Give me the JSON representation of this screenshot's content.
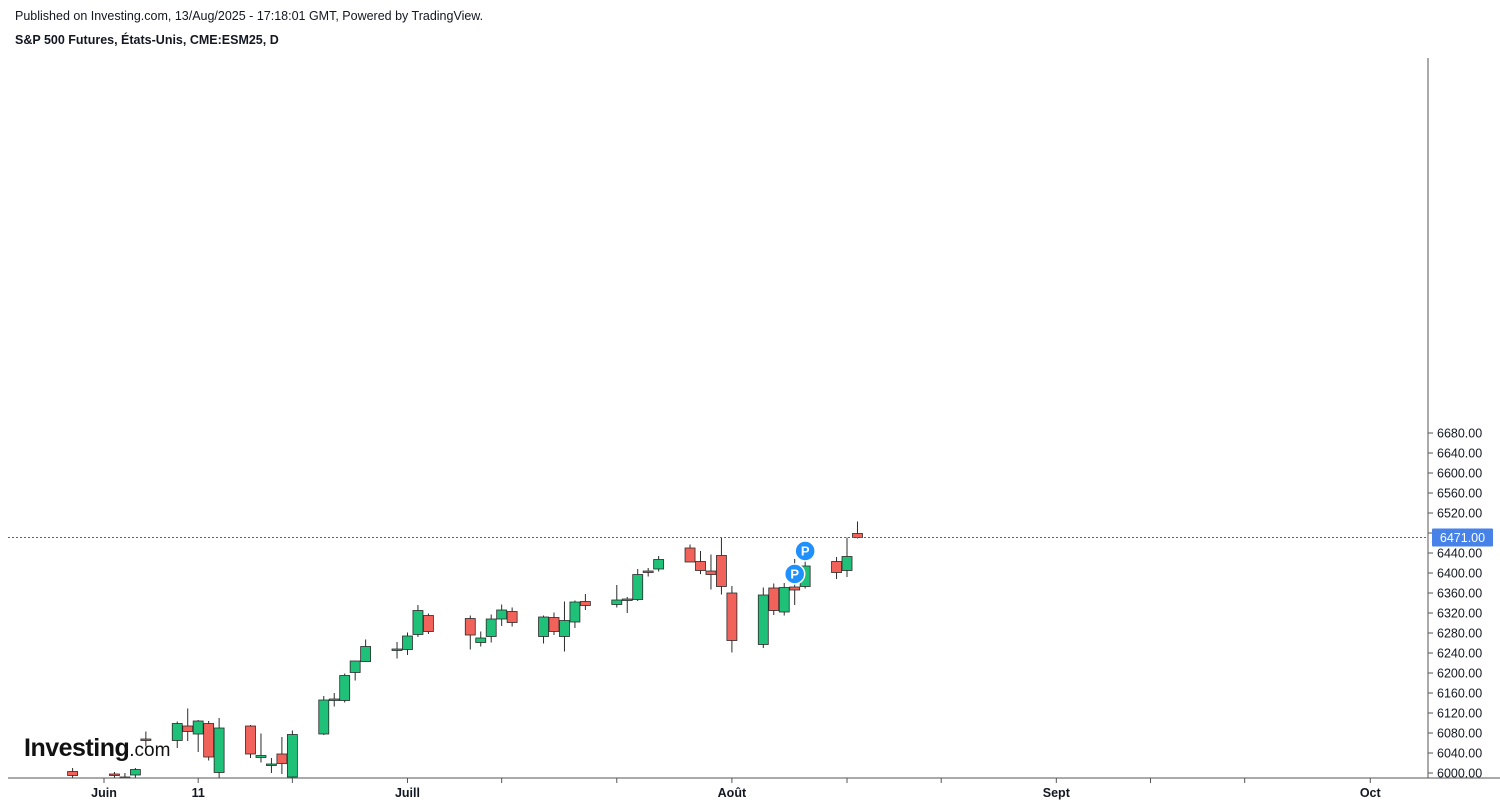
{
  "header": {
    "published": "Published on Investing.com, 13/Aug/2025 - 17:18:01 GMT, Powered by TradingView.",
    "symbol": "S&P 500 Futures, États-Unis, CME:ESM25, D"
  },
  "logo": {
    "main": "Investing",
    "suffix": ".com"
  },
  "colors": {
    "up": "#1ec177",
    "down": "#f0625a",
    "wick": "#2b2b2b",
    "price_line": "#2962ff",
    "marker": "#1e90ff",
    "axis": "#555555"
  },
  "chart_data": {
    "type": "candlestick",
    "title": "S&P 500 Futures, États-Unis, CME:ESM25, D",
    "y_ticks": [
      "6000.00",
      "6040.00",
      "6080.00",
      "6120.00",
      "6160.00",
      "6200.00",
      "6240.00",
      "6280.00",
      "6320.00",
      "6360.00",
      "6400.00",
      "6440.00",
      "6480.00",
      "6520.00",
      "6560.00",
      "6600.00",
      "6640.00",
      "6680.00"
    ],
    "x_ticks": [
      {
        "label": "Juin",
        "date": "2025-06-02"
      },
      {
        "label": "11",
        "date": "2025-06-11"
      },
      {
        "label": "",
        "date": "2025-06-20"
      },
      {
        "label": "Juill",
        "date": "2025-07-01"
      },
      {
        "label": "",
        "date": "2025-07-10"
      },
      {
        "label": "",
        "date": "2025-07-21"
      },
      {
        "label": "Août",
        "date": "2025-08-01"
      },
      {
        "label": "",
        "date": "2025-08-12"
      },
      {
        "label": "",
        "date": "2025-08-21"
      },
      {
        "label": "Sept",
        "date": "2025-09-01"
      },
      {
        "label": "",
        "date": "2025-09-10"
      },
      {
        "label": "",
        "date": "2025-09-19"
      },
      {
        "label": "Oct",
        "date": "2025-10-01"
      }
    ],
    "last_price": "6471.00",
    "last_price_value": 6471,
    "markers": [
      {
        "label": "P",
        "date": "2025-08-08",
        "price": 6444
      },
      {
        "label": "P",
        "date": "2025-08-07",
        "price": 6398
      }
    ],
    "candles": [
      {
        "d": "2025-05-30",
        "o": 6003,
        "h": 6010,
        "l": 5990,
        "c": 5995
      },
      {
        "d": "2025-06-03",
        "o": 5998,
        "h": 6002,
        "l": 5990,
        "c": 5996
      },
      {
        "d": "2025-06-04",
        "o": 5992,
        "h": 6000,
        "l": 5985,
        "c": 5990
      },
      {
        "d": "2025-06-05",
        "o": 5996,
        "h": 6010,
        "l": 5985,
        "c": 6007
      },
      {
        "d": "2025-06-06",
        "o": 6068,
        "h": 6083,
        "l": 6053,
        "c": 6065
      },
      {
        "d": "2025-06-09",
        "o": 6065,
        "h": 6103,
        "l": 6050,
        "c": 6099
      },
      {
        "d": "2025-06-10",
        "o": 6094,
        "h": 6129,
        "l": 6064,
        "c": 6083
      },
      {
        "d": "2025-06-11",
        "o": 6078,
        "h": 6106,
        "l": 6042,
        "c": 6104
      },
      {
        "d": "2025-06-12",
        "o": 6099,
        "h": 6104,
        "l": 6025,
        "c": 6032
      },
      {
        "d": "2025-06-13",
        "o": 6001,
        "h": 6110,
        "l": 5990,
        "c": 6090
      },
      {
        "d": "2025-06-16",
        "o": 6094,
        "h": 6096,
        "l": 6030,
        "c": 6038
      },
      {
        "d": "2025-06-17",
        "o": 6031,
        "h": 6079,
        "l": 6021,
        "c": 6035
      },
      {
        "d": "2025-06-18",
        "o": 6017,
        "h": 6030,
        "l": 6000,
        "c": 6018
      },
      {
        "d": "2025-06-19",
        "o": 6038,
        "h": 6072,
        "l": 5998,
        "c": 6019
      },
      {
        "d": "2025-06-20",
        "o": 5992,
        "h": 6085,
        "l": 5985,
        "c": 6077
      },
      {
        "d": "2025-06-23",
        "o": 6078,
        "h": 6154,
        "l": 6076,
        "c": 6146
      },
      {
        "d": "2025-06-24",
        "o": 6146,
        "h": 6160,
        "l": 6133,
        "c": 6148
      },
      {
        "d": "2025-06-25",
        "o": 6145,
        "h": 6199,
        "l": 6141,
        "c": 6195
      },
      {
        "d": "2025-06-26",
        "o": 6201,
        "h": 6225,
        "l": 6185,
        "c": 6224
      },
      {
        "d": "2025-06-27",
        "o": 6223,
        "h": 6267,
        "l": 6222,
        "c": 6253
      },
      {
        "d": "2025-06-30",
        "o": 6246,
        "h": 6262,
        "l": 6229,
        "c": 6248
      },
      {
        "d": "2025-07-01",
        "o": 6247,
        "h": 6281,
        "l": 6236,
        "c": 6274
      },
      {
        "d": "2025-07-02",
        "o": 6277,
        "h": 6336,
        "l": 6272,
        "c": 6325
      },
      {
        "d": "2025-07-03",
        "o": 6315,
        "h": 6319,
        "l": 6278,
        "c": 6283
      },
      {
        "d": "2025-07-07",
        "o": 6309,
        "h": 6315,
        "l": 6247,
        "c": 6276
      },
      {
        "d": "2025-07-08",
        "o": 6261,
        "h": 6283,
        "l": 6253,
        "c": 6270
      },
      {
        "d": "2025-07-09",
        "o": 6273,
        "h": 6317,
        "l": 6261,
        "c": 6308
      },
      {
        "d": "2025-07-10",
        "o": 6308,
        "h": 6337,
        "l": 6294,
        "c": 6326
      },
      {
        "d": "2025-07-11",
        "o": 6323,
        "h": 6331,
        "l": 6293,
        "c": 6301
      },
      {
        "d": "2025-07-14",
        "o": 6273,
        "h": 6315,
        "l": 6259,
        "c": 6312
      },
      {
        "d": "2025-07-15",
        "o": 6311,
        "h": 6321,
        "l": 6276,
        "c": 6283
      },
      {
        "d": "2025-07-16",
        "o": 6273,
        "h": 6343,
        "l": 6243,
        "c": 6305
      },
      {
        "d": "2025-07-17",
        "o": 6302,
        "h": 6345,
        "l": 6290,
        "c": 6342
      },
      {
        "d": "2025-07-18",
        "o": 6343,
        "h": 6358,
        "l": 6326,
        "c": 6335
      },
      {
        "d": "2025-07-21",
        "o": 6337,
        "h": 6376,
        "l": 6331,
        "c": 6346
      },
      {
        "d": "2025-07-22",
        "o": 6347,
        "h": 6352,
        "l": 6320,
        "c": 6348
      },
      {
        "d": "2025-07-23",
        "o": 6347,
        "h": 6408,
        "l": 6344,
        "c": 6397
      },
      {
        "d": "2025-07-24",
        "o": 6404,
        "h": 6410,
        "l": 6393,
        "c": 6402
      },
      {
        "d": "2025-07-25",
        "o": 6408,
        "h": 6434,
        "l": 6403,
        "c": 6427
      },
      {
        "d": "2025-07-28",
        "o": 6450,
        "h": 6457,
        "l": 6422,
        "c": 6422
      },
      {
        "d": "2025-07-29",
        "o": 6423,
        "h": 6444,
        "l": 6398,
        "c": 6405
      },
      {
        "d": "2025-07-30",
        "o": 6404,
        "h": 6437,
        "l": 6367,
        "c": 6397
      },
      {
        "d": "2025-07-31",
        "o": 6435,
        "h": 6470,
        "l": 6357,
        "c": 6373
      },
      {
        "d": "2025-08-01",
        "o": 6360,
        "h": 6374,
        "l": 6241,
        "c": 6265
      },
      {
        "d": "2025-08-04",
        "o": 6257,
        "h": 6371,
        "l": 6250,
        "c": 6356
      },
      {
        "d": "2025-08-05",
        "o": 6370,
        "h": 6379,
        "l": 6316,
        "c": 6325
      },
      {
        "d": "2025-08-06",
        "o": 6322,
        "h": 6380,
        "l": 6315,
        "c": 6371
      },
      {
        "d": "2025-08-07",
        "o": 6372,
        "h": 6428,
        "l": 6336,
        "c": 6366
      },
      {
        "d": "2025-08-08",
        "o": 6373,
        "h": 6427,
        "l": 6369,
        "c": 6414
      },
      {
        "d": "2025-08-11",
        "o": 6423,
        "h": 6432,
        "l": 6388,
        "c": 6401
      },
      {
        "d": "2025-08-12",
        "o": 6405,
        "h": 6471,
        "l": 6392,
        "c": 6433
      },
      {
        "d": "2025-08-13",
        "o": 6479,
        "h": 6503,
        "l": 6469,
        "c": 6471
      }
    ]
  }
}
